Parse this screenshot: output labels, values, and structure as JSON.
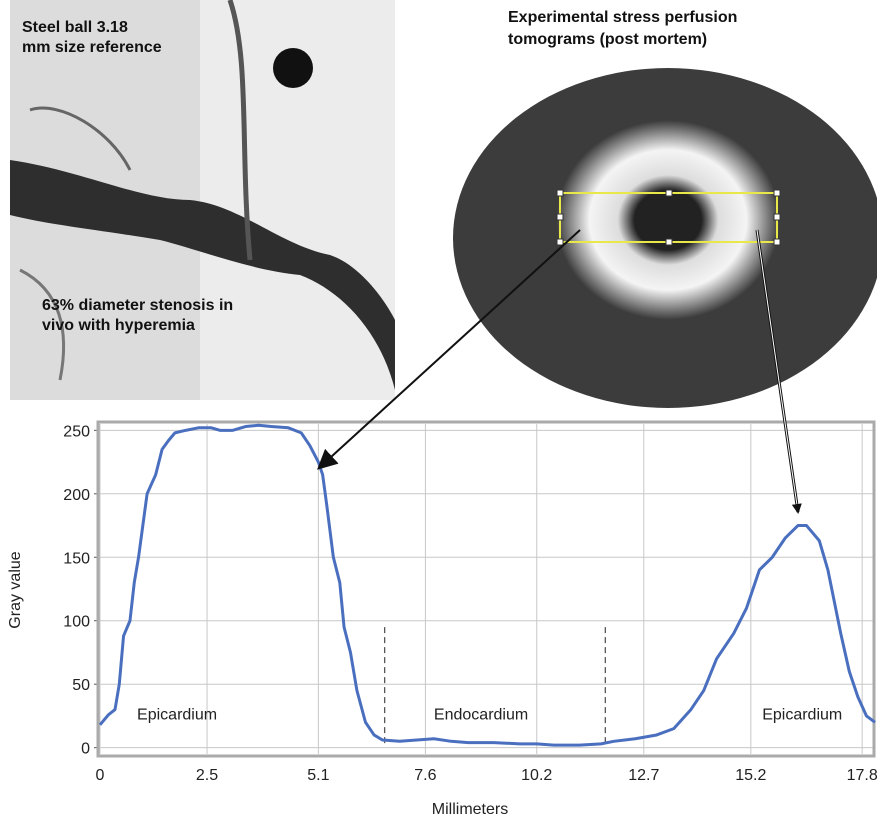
{
  "panels": {
    "angiogram_label_top": "Steel ball 3.18 mm size reference",
    "angiogram_label_bottom": "63% diameter stenosis in vivo with hyperemia",
    "tomogram_label": "Experimental stress perfusion tomograms (post mortem)"
  },
  "chart_data": {
    "type": "line",
    "x_label": "Millimeters",
    "y_label": "Gray value",
    "x": [
      0,
      0.2,
      0.35,
      0.45,
      0.55,
      0.7,
      0.8,
      0.9,
      1.0,
      1.1,
      1.3,
      1.45,
      1.6,
      1.75,
      2.0,
      2.3,
      2.6,
      2.8,
      3.1,
      3.4,
      3.7,
      4.0,
      4.4,
      4.7,
      4.9,
      5.1,
      5.2,
      5.3,
      5.45,
      5.6,
      5.7,
      5.85,
      6.0,
      6.2,
      6.4,
      6.6,
      7.0,
      7.4,
      7.8,
      8.2,
      8.6,
      9.2,
      9.8,
      10.2,
      10.6,
      11.2,
      11.7,
      12.0,
      12.5,
      13.0,
      13.4,
      13.8,
      14.1,
      14.4,
      14.8,
      15.1,
      15.4,
      15.7,
      16.0,
      16.3,
      16.5,
      16.8,
      17.0,
      17.3,
      17.5,
      17.7,
      17.9,
      18.1
    ],
    "series": [
      {
        "color": "#4a6fbf",
        "values": [
          18,
          26,
          30,
          50,
          88,
          100,
          130,
          150,
          175,
          200,
          215,
          235,
          242,
          248,
          250,
          252,
          252,
          250,
          250,
          253,
          254,
          253,
          252,
          248,
          238,
          225,
          215,
          190,
          150,
          130,
          95,
          75,
          45,
          20,
          10,
          6,
          5,
          6,
          7,
          5,
          4,
          4,
          3,
          3,
          2,
          2,
          3,
          5,
          7,
          10,
          15,
          30,
          45,
          70,
          90,
          110,
          140,
          150,
          165,
          175,
          175,
          163,
          140,
          90,
          60,
          40,
          25,
          20
        ]
      }
    ],
    "xlim": [
      0,
      18.1
    ],
    "ylim": [
      -5,
      255
    ],
    "xticks": [
      0,
      2.5,
      5.1,
      7.6,
      10.2,
      12.7,
      15.2,
      17.8
    ],
    "yticks": [
      0,
      50,
      100,
      150,
      200,
      250
    ],
    "grid": true,
    "dividers": [
      6.65,
      11.8
    ],
    "annotations": [
      "Epicardium",
      "Endocardium",
      "Epicardium"
    ]
  }
}
